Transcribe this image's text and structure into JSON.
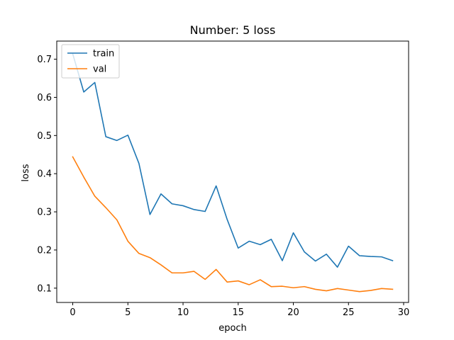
{
  "chart_data": {
    "type": "line",
    "title": "Number: 5 loss",
    "xlabel": "epoch",
    "ylabel": "loss",
    "xlim": [
      -1.45,
      30.45
    ],
    "ylim": [
      0.0625,
      0.7475
    ],
    "xticks": [
      0,
      5,
      10,
      15,
      20,
      25,
      30
    ],
    "yticks": [
      0.1,
      0.2,
      0.3,
      0.4,
      0.5,
      0.6,
      0.7
    ],
    "grid": false,
    "legend_position": "top-left",
    "x": [
      0,
      1,
      2,
      3,
      4,
      5,
      6,
      7,
      8,
      9,
      10,
      11,
      12,
      13,
      14,
      15,
      16,
      17,
      18,
      19,
      20,
      21,
      22,
      23,
      24,
      25,
      26,
      27,
      28,
      29
    ],
    "series": [
      {
        "name": "train",
        "color": "#1f77b4",
        "values": [
          0.714,
          0.614,
          0.639,
          0.497,
          0.487,
          0.501,
          0.427,
          0.293,
          0.347,
          0.321,
          0.316,
          0.306,
          0.301,
          0.368,
          0.28,
          0.205,
          0.223,
          0.214,
          0.228,
          0.172,
          0.245,
          0.195,
          0.171,
          0.189,
          0.155,
          0.21,
          0.185,
          0.183,
          0.182,
          0.172
        ]
      },
      {
        "name": "val",
        "color": "#ff7f0e",
        "values": [
          0.444,
          0.391,
          0.341,
          0.311,
          0.279,
          0.223,
          0.191,
          0.18,
          0.161,
          0.14,
          0.14,
          0.144,
          0.123,
          0.149,
          0.116,
          0.119,
          0.109,
          0.122,
          0.104,
          0.105,
          0.101,
          0.104,
          0.097,
          0.093,
          0.099,
          0.095,
          0.091,
          0.094,
          0.099,
          0.097
        ]
      }
    ]
  }
}
